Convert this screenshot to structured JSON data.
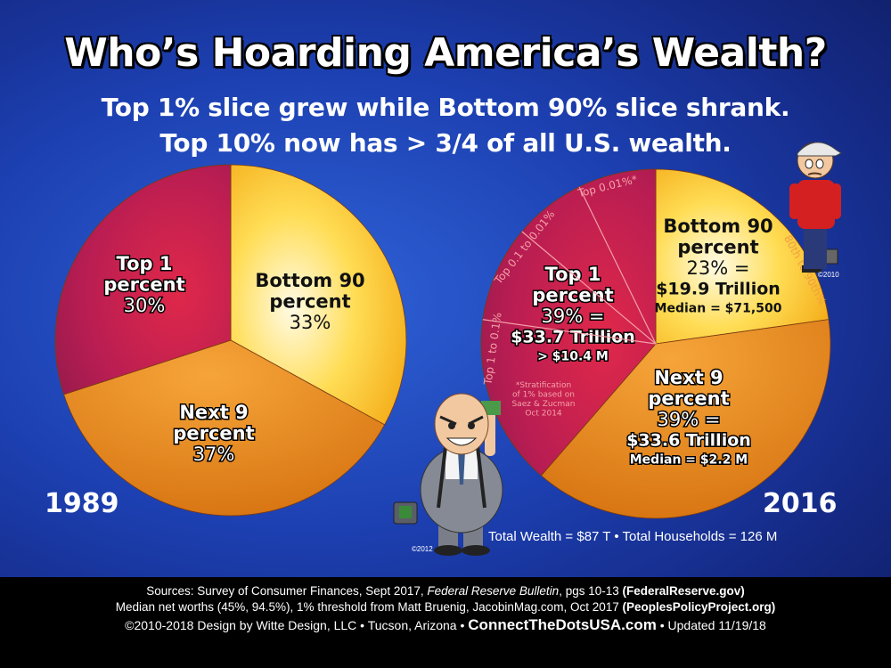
{
  "header": {
    "title": "Who’s Hoarding America’s Wealth?",
    "subtitle_1": "Top 1% slice grew while Bottom 90% slice shrank.",
    "subtitle_2": "Top 10% now has > 3/4 of all U.S. wealth."
  },
  "chart_data": [
    {
      "type": "pie",
      "year": "1989",
      "slices": [
        {
          "label_lines": [
            "Bottom 90",
            "percent"
          ],
          "value_text": "33%",
          "value": 33,
          "color": "#f6a81c"
        },
        {
          "label_lines": [
            "Next 9",
            "percent"
          ],
          "value_text": "37%",
          "value": 37,
          "color": "#e07c15"
        },
        {
          "label_lines": [
            "Top 1",
            "percent"
          ],
          "value_text": "30%",
          "value": 30,
          "color": "#b31f52"
        }
      ]
    },
    {
      "type": "pie",
      "year": "2016",
      "slices": [
        {
          "label_lines": [
            "Bottom 90",
            "percent"
          ],
          "value_text": "23% =",
          "amount": "$19.9 Trillion",
          "detail": "Median = $71,500",
          "value": 23,
          "color": "#f6a81c"
        },
        {
          "label_lines": [
            "Next 9",
            "percent"
          ],
          "value_text": "39% =",
          "amount": "$33.6 Trillion",
          "detail": "Median = $2.2 M",
          "value": 39,
          "color": "#e07c15"
        },
        {
          "label_lines": [
            "Top 1",
            "percent"
          ],
          "value_text": "39% =",
          "amount": "$33.7 Trillion",
          "detail": "> $10.4 M",
          "value": 39,
          "color": "#b31f52"
        }
      ],
      "stratification_labels": [
        "80th to 90th%",
        "Top 0.01%*",
        "Top 0.1 to 0.01%",
        "Top 1 to 0.1%"
      ],
      "note_lines": [
        "*Stratification",
        "of 1% based on",
        "Saez & Zucman",
        "Oct 2014"
      ],
      "totals": "Total Wealth = $87 T  •  Total Households = 126 M"
    }
  ],
  "illustrations": {
    "worker_copyright": "©2010",
    "banker_copyright": "©2012"
  },
  "footer": {
    "sources_1": {
      "pre": "Sources: Survey of Consumer Finances, Sept 2017, ",
      "italic": "Federal Reserve Bulletin",
      "mid": ", pgs 10-13 ",
      "bold": "(FederalReserve.gov)"
    },
    "sources_2": {
      "pre": "Median net worths (45%, 94.5%), 1% threshold from Matt Bruenig, JacobinMag.com, Oct 2017 ",
      "bold": "(PeoplesPolicyProject.org)"
    },
    "copyright": "©2010-2018 Design by Witte Design, LLC • Tucson, Arizona • ",
    "site": "ConnectTheDotsUSA.com",
    "updated": " • Updated 11/19/18"
  }
}
